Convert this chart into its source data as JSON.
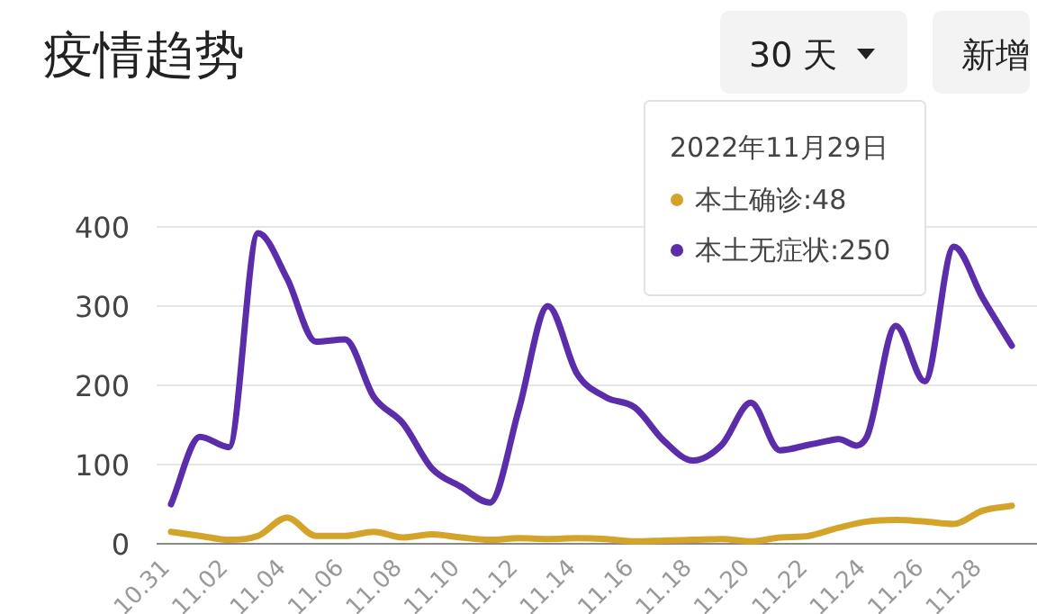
{
  "chart_data": {
    "type": "line",
    "title": "疫情趋势",
    "annotations": [
      "30 天",
      "新增",
      "2022年11月29日",
      "本土确诊:48",
      "本土无症状:250"
    ],
    "categories": [
      "10.31",
      null,
      "11.02",
      null,
      "11.04",
      null,
      "11.06",
      null,
      "11.08",
      null,
      "11.10",
      null,
      "11.12",
      null,
      "11.14",
      null,
      "11.16",
      null,
      "11.18",
      null,
      "11.20",
      null,
      "11.22",
      null,
      "11.24",
      null,
      "11.26",
      null,
      "11.28",
      null
    ],
    "series": [
      {
        "color": "#d4a42a",
        "values": [
          15,
          10,
          5,
          10,
          33,
          10,
          10,
          15,
          8,
          12,
          8,
          5,
          7,
          6,
          7,
          6,
          3,
          4,
          5,
          6,
          3,
          8,
          10,
          20,
          28,
          30,
          28,
          25,
          42,
          48
        ]
      },
      {
        "color": "#5b2dab",
        "values": [
          50,
          135,
          122,
          392,
          335,
          255,
          258,
          185,
          152,
          95,
          72,
          52,
          170,
          300,
          215,
          185,
          172,
          130,
          105,
          125,
          178,
          118,
          125,
          132,
          135,
          275,
          205,
          375,
          310,
          250
        ]
      }
    ],
    "ylim": [
      0,
      400
    ],
    "yticks": [
      0,
      100,
      200,
      300,
      400
    ],
    "grid": "y"
  }
}
